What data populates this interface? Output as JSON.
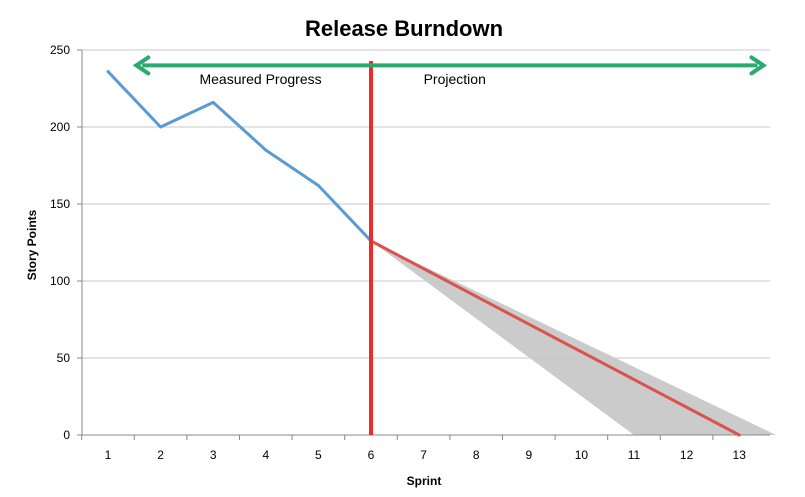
{
  "chart_data": {
    "type": "line",
    "title": "Release Burndown",
    "xlabel": "Sprint",
    "ylabel": "Story Points",
    "categories": [
      "1",
      "2",
      "3",
      "4",
      "5",
      "6",
      "7",
      "8",
      "9",
      "10",
      "11",
      "12",
      "13"
    ],
    "ylim": [
      0,
      250
    ],
    "yticks": [
      0,
      50,
      100,
      150,
      200,
      250
    ],
    "grid": true,
    "series": [
      {
        "name": "",
        "role": "measured",
        "color": "#5b9bd5",
        "points": [
          [
            1,
            236
          ],
          [
            2,
            200
          ],
          [
            3,
            216
          ],
          [
            4,
            185
          ],
          [
            5,
            162
          ],
          [
            6,
            126
          ]
        ]
      },
      {
        "name": "",
        "role": "projection",
        "color": "#d9534f",
        "points": [
          [
            6,
            126
          ],
          [
            13,
            0
          ]
        ]
      }
    ],
    "projection_band": {
      "color": "#c8c8c8",
      "upper": [
        [
          6,
          126
        ],
        [
          13.7,
          0
        ]
      ],
      "lower": [
        [
          6,
          126
        ],
        [
          11,
          0
        ]
      ]
    },
    "divider": {
      "x": 6,
      "color": "#ee2b2b"
    },
    "span_arrow": {
      "y": 240,
      "from_x": 1.5,
      "to_x": 13.5,
      "color": "#2aaa6e"
    },
    "annotations": [
      {
        "text": "Measured Progress",
        "x": 3.9,
        "y": 228
      },
      {
        "text": "Projection",
        "x": 7.0,
        "y": 228
      }
    ]
  }
}
